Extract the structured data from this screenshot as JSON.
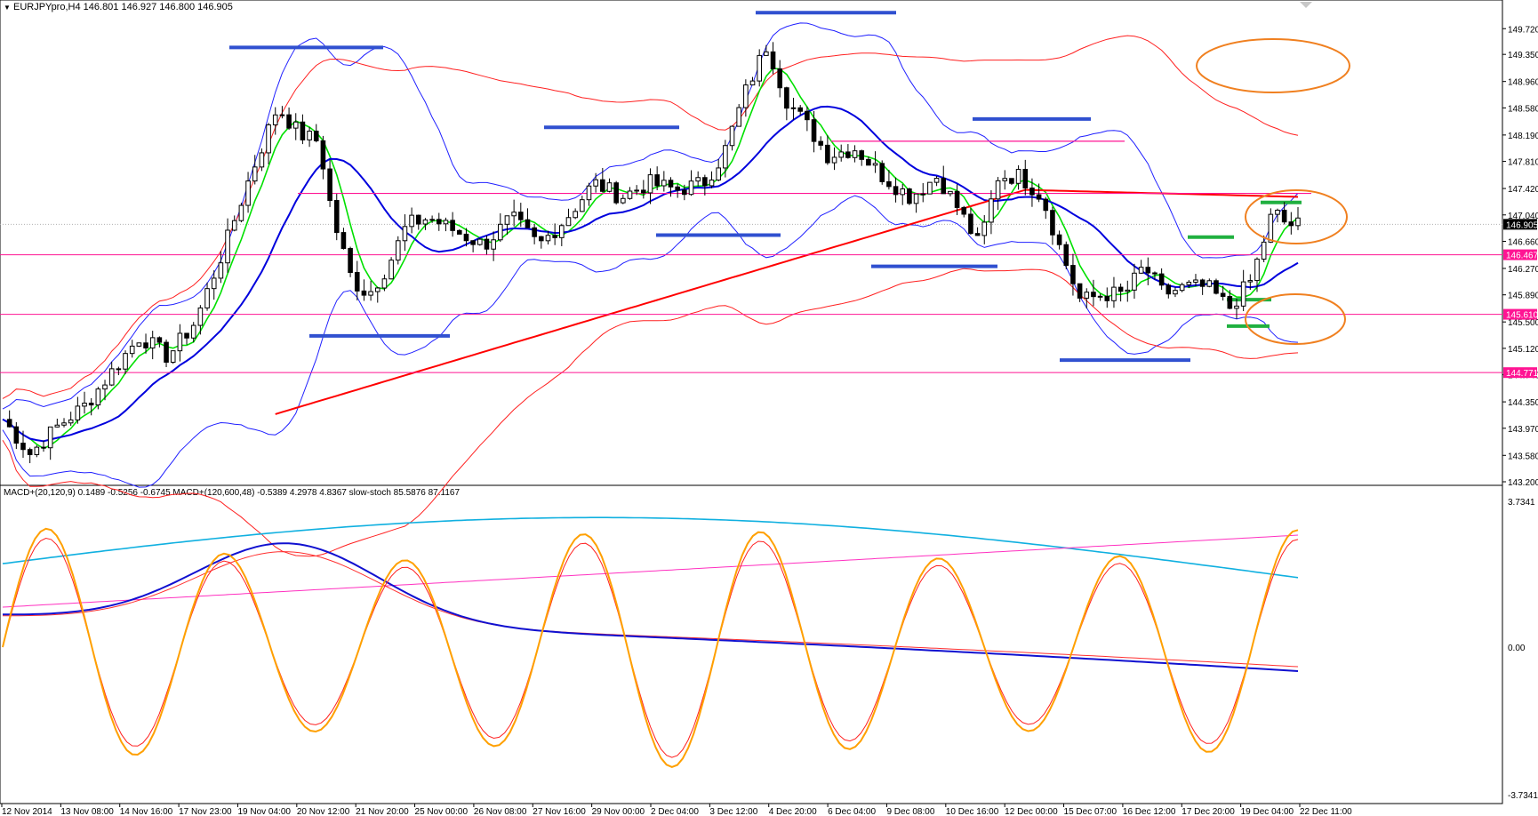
{
  "window": {
    "title": "EURJPYpro,H4",
    "ohlc": "146.801 146.927 146.800 146.905",
    "dropdown_icon": "triangle-down-icon",
    "scroll_icon": "chevron-down-icon"
  },
  "indicator_header": {
    "macd1_name": "MACD+(20,120,9)",
    "macd1_values": "0.1489 -0.5256 -0.6745",
    "macd2_name": "MACD+(120,600,48)",
    "macd2_values": "-0.5389 4.2978 4.8367",
    "stoch_name": "slow-stoch",
    "stoch_values": "85.5876 87.1167"
  },
  "colors": {
    "bull_candle": "#ffffff",
    "bear_candle": "#000000",
    "ma_fast": "#00e000",
    "ma_slow": "#0000dd",
    "ma_long": "#ff0000",
    "bollinger_wide": "#ff2020",
    "bollinger_narrow": "#2020ff",
    "sr_line": "#ff1493",
    "blue_zone": "#3050d0",
    "green_marker": "#20b040",
    "ellipse": "#f08020",
    "stoch_main": "#ffa000",
    "stoch_signal": "#ff2020",
    "macd_main": "#1010d0",
    "macd_signal": "#ff3030",
    "macd2_main": "#10b0e0",
    "macd2_signal": "#ff30c0"
  },
  "chart_data": {
    "type": "candlestick",
    "symbol": "EURJPYpro",
    "timeframe": "H4",
    "ylim": [
      143.2,
      149.8
    ],
    "price_ticks": [
      "149.720",
      "149.350",
      "148.960",
      "148.580",
      "148.190",
      "147.810",
      "147.420",
      "147.040",
      "146.660",
      "146.270",
      "145.890",
      "145.500",
      "145.120",
      "144.740",
      "144.350",
      "143.970",
      "143.580",
      "143.200"
    ],
    "current_price": "146.905",
    "level_labels": [
      "146.467",
      "145.610",
      "144.771"
    ],
    "time_labels": [
      "12 Nov 2014",
      "13 Nov 08:00",
      "14 Nov 16:00",
      "17 Nov 23:00",
      "19 Nov 04:00",
      "20 Nov 12:00",
      "21 Nov 20:00",
      "25 Nov 00:00",
      "26 Nov 08:00",
      "27 Nov 16:00",
      "29 Nov 00:00",
      "2 Dec 04:00",
      "3 Dec 12:00",
      "4 Dec 20:00",
      "6 Dec 04:00",
      "9 Dec 08:00",
      "10 Dec 16:00",
      "12 Dec 00:00",
      "15 Dec 07:00",
      "16 Dec 12:00",
      "17 Dec 20:00",
      "19 Dec 04:00",
      "22 Dec 11:00"
    ],
    "close_path": [
      [
        0,
        144.1
      ],
      [
        10,
        143.6
      ],
      [
        20,
        144.0
      ],
      [
        30,
        144.3
      ],
      [
        40,
        144.8
      ],
      [
        50,
        145.3
      ],
      [
        60,
        145.0
      ],
      [
        70,
        145.5
      ],
      [
        80,
        146.5
      ],
      [
        90,
        147.6
      ],
      [
        100,
        148.6
      ],
      [
        108,
        148.2
      ],
      [
        115,
        148.1
      ],
      [
        120,
        147.0
      ],
      [
        127,
        146.1
      ],
      [
        133,
        145.9
      ],
      [
        140,
        146.3
      ],
      [
        147,
        146.9
      ],
      [
        155,
        147.0
      ],
      [
        165,
        146.8
      ],
      [
        175,
        146.6
      ],
      [
        185,
        147.0
      ],
      [
        195,
        146.6
      ],
      [
        205,
        147.0
      ],
      [
        215,
        147.5
      ],
      [
        225,
        147.3
      ],
      [
        235,
        147.5
      ],
      [
        245,
        147.4
      ],
      [
        255,
        147.5
      ],
      [
        262,
        147.9
      ],
      [
        270,
        148.8
      ],
      [
        278,
        149.5
      ],
      [
        285,
        148.7
      ],
      [
        293,
        148.3
      ],
      [
        300,
        147.9
      ],
      [
        310,
        148.0
      ],
      [
        320,
        147.6
      ],
      [
        330,
        147.3
      ],
      [
        340,
        147.6
      ],
      [
        348,
        147.1
      ],
      [
        355,
        146.6
      ],
      [
        362,
        147.6
      ],
      [
        370,
        147.6
      ],
      [
        378,
        147.3
      ],
      [
        385,
        146.5
      ],
      [
        392,
        145.8
      ],
      [
        400,
        145.9
      ],
      [
        408,
        145.9
      ],
      [
        415,
        146.3
      ],
      [
        422,
        145.9
      ],
      [
        430,
        146.0
      ],
      [
        438,
        146.0
      ],
      [
        446,
        145.7
      ],
      [
        454,
        146.1
      ],
      [
        462,
        147.1
      ],
      [
        467,
        146.9
      ],
      [
        471,
        146.9
      ]
    ],
    "stoch_ylim": [
      -3.7341,
      3.7341
    ],
    "stoch_ticks": [
      "3.7341",
      "0.00",
      "-3.7341"
    ]
  }
}
